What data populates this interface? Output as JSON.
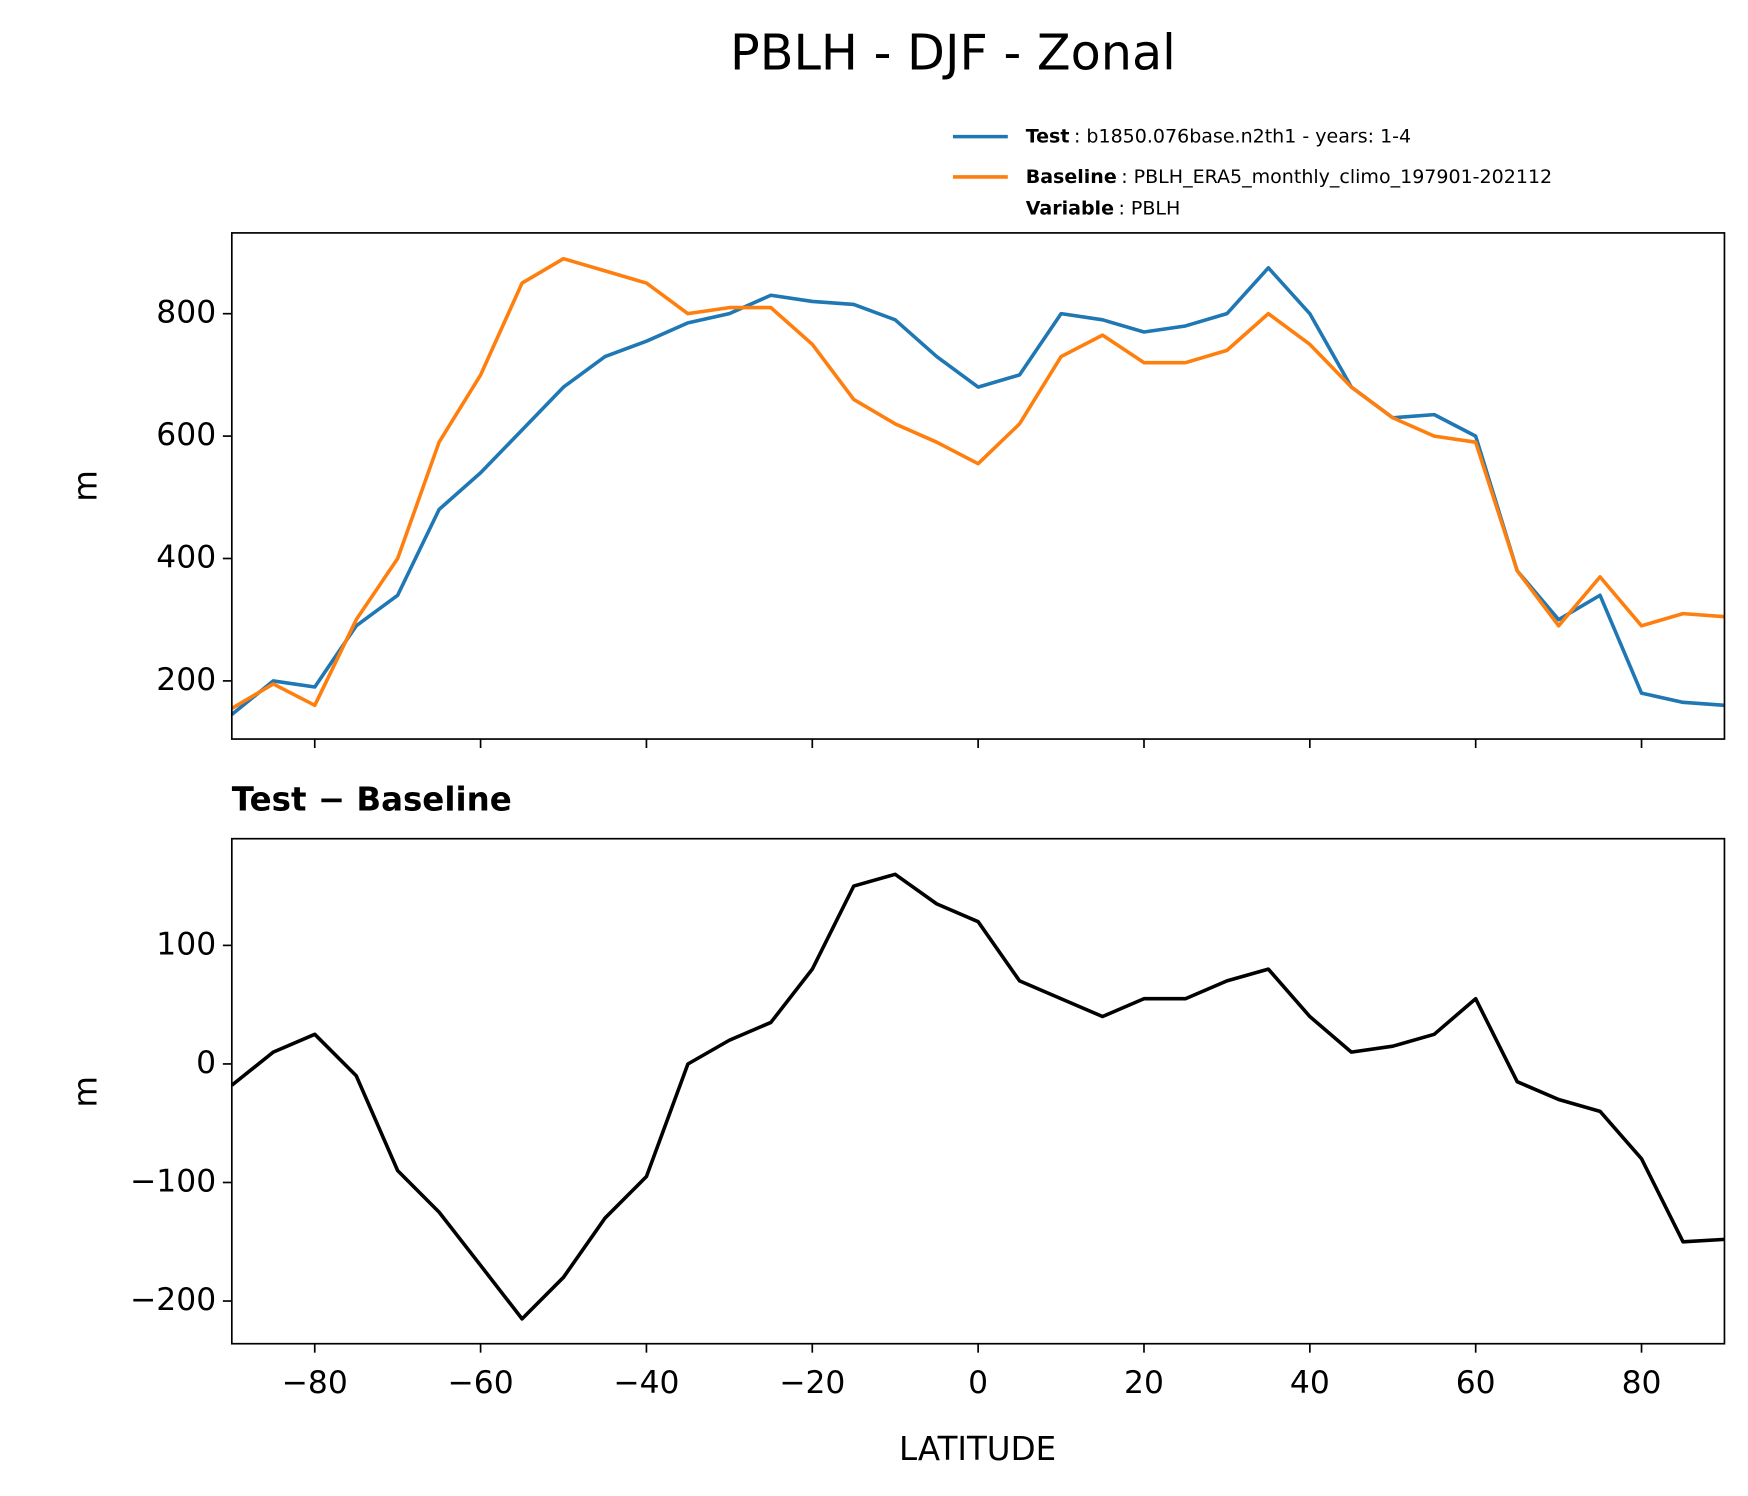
{
  "chart_data": [
    {
      "type": "line",
      "title": "PBLH - DJF - Zonal",
      "ylabel": "m",
      "x": [
        -90,
        -85,
        -80,
        -75,
        -70,
        -65,
        -60,
        -55,
        -50,
        -45,
        -40,
        -35,
        -30,
        -25,
        -20,
        -15,
        -10,
        -5,
        0,
        5,
        10,
        15,
        20,
        25,
        30,
        35,
        40,
        45,
        50,
        55,
        60,
        65,
        70,
        75,
        80,
        85,
        90
      ],
      "series": [
        {
          "name": "Test",
          "description": ": b1850.076base.n2th1 - years: 1-4",
          "color": "#1f77b4",
          "values": [
            145,
            200,
            190,
            290,
            340,
            480,
            540,
            610,
            680,
            730,
            755,
            785,
            800,
            830,
            820,
            815,
            790,
            730,
            680,
            700,
            800,
            790,
            770,
            780,
            800,
            875,
            800,
            680,
            630,
            635,
            600,
            380,
            300,
            340,
            180,
            165,
            160
          ]
        },
        {
          "name": "Baseline",
          "description": ": PBLH_ERA5_monthly_climo_197901-202112",
          "color": "#ff7f0e",
          "values": [
            155,
            195,
            160,
            300,
            400,
            590,
            700,
            850,
            890,
            870,
            850,
            800,
            810,
            810,
            750,
            660,
            620,
            590,
            555,
            620,
            730,
            765,
            720,
            720,
            740,
            800,
            750,
            680,
            630,
            600,
            590,
            380,
            290,
            370,
            290,
            310,
            305
          ]
        }
      ],
      "legend_extra": {
        "name": "Variable",
        "description": ": PBLH"
      },
      "xlim": [
        -90,
        90
      ],
      "xticks": [
        -80,
        -60,
        -40,
        -20,
        0,
        20,
        40,
        60,
        80
      ],
      "ylim": [
        105,
        932
      ],
      "yticks": [
        200,
        400,
        600,
        800
      ]
    },
    {
      "type": "line",
      "subtitle": "Test − Baseline",
      "ylabel": "m",
      "xlabel": "LATITUDE",
      "x": [
        -90,
        -85,
        -80,
        -75,
        -70,
        -65,
        -60,
        -55,
        -50,
        -45,
        -40,
        -35,
        -30,
        -25,
        -20,
        -15,
        -10,
        -5,
        0,
        5,
        10,
        15,
        20,
        25,
        30,
        35,
        40,
        45,
        50,
        55,
        60,
        65,
        70,
        75,
        80,
        85,
        90
      ],
      "series": [
        {
          "color": "#000000",
          "values": [
            -18,
            10,
            25,
            -10,
            -90,
            -125,
            -170,
            -215,
            -180,
            -130,
            -95,
            0,
            20,
            35,
            80,
            150,
            160,
            135,
            120,
            70,
            55,
            40,
            55,
            55,
            70,
            80,
            40,
            10,
            15,
            25,
            55,
            -15,
            -30,
            -40,
            -80,
            -150,
            -148
          ]
        }
      ],
      "xlim": [
        -90,
        90
      ],
      "xticks": [
        {
          "value": -80,
          "label": "−80"
        },
        {
          "value": -60,
          "label": "−60"
        },
        {
          "value": -40,
          "label": "−40"
        },
        {
          "value": -20,
          "label": "−20"
        },
        0,
        20,
        40,
        60,
        80
      ],
      "ylim": [
        -236,
        190
      ],
      "yticks": [
        {
          "value": -200,
          "label": "−200"
        },
        {
          "value": -100,
          "label": "−100"
        },
        0,
        100
      ]
    }
  ]
}
